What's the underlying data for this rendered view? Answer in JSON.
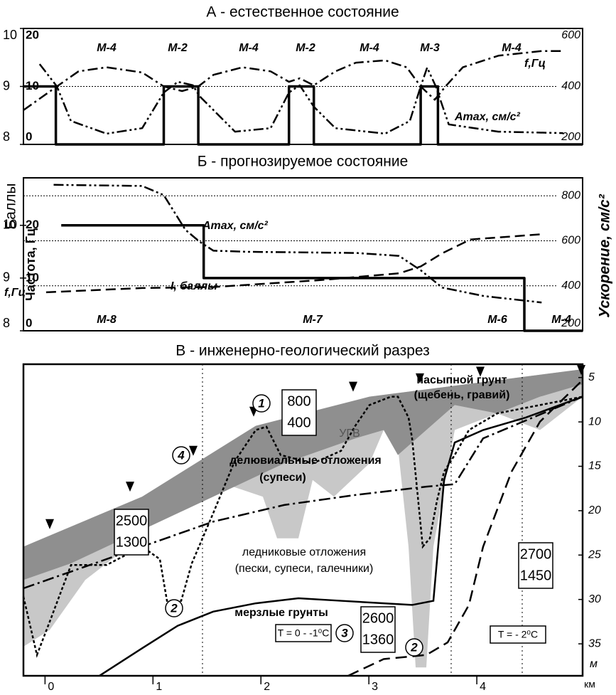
{
  "chart_data": [
    {
      "type": "line",
      "title": "А - естественное состояние",
      "xlim": [
        -0.2,
        4.98
      ],
      "ylim": [
        8,
        10
      ],
      "yticks": [
        8,
        9,
        10
      ],
      "flim": [
        0,
        20
      ],
      "fticks": [
        0,
        10,
        20
      ],
      "y2lim": [
        200,
        600
      ],
      "y2ticks": [
        200,
        400,
        600
      ],
      "grid": "y2",
      "zones": [
        "М-4",
        "М-2",
        "М-4",
        "М-2",
        "М-4",
        "М-3",
        "М-4"
      ],
      "series": [
        {
          "color": "#000000",
          "style": "solid",
          "axis": "y",
          "x": [
            -0.2,
            0.1,
            0.1,
            1.1,
            1.1,
            1.42,
            1.42,
            2.26,
            2.26,
            2.49,
            2.49,
            3.48,
            3.48,
            3.64,
            3.64,
            4.98
          ],
          "values": [
            9,
            9,
            8,
            8,
            9,
            9,
            8,
            8,
            9,
            9,
            8,
            8,
            9,
            9,
            8,
            8
          ]
        },
        {
          "name": "f,Гц",
          "color": "#000000",
          "style": "dash-dot",
          "axis": "f",
          "x": [
            -0.2,
            0.11,
            0.31,
            0.57,
            0.9,
            1.1,
            1.27,
            1.42,
            1.56,
            1.83,
            2.09,
            2.26,
            2.36,
            2.49,
            2.69,
            2.88,
            3.15,
            3.35,
            3.48,
            3.61,
            3.71,
            3.87,
            4.2,
            4.6,
            4.8
          ],
          "values": [
            5.9,
            10,
            12.6,
            13.3,
            12.4,
            10,
            9.2,
            10,
            12,
            13.3,
            12.6,
            10.8,
            11.4,
            10.2,
            12.6,
            14.1,
            14.5,
            13.3,
            10,
            7.7,
            10,
            13.3,
            15.3,
            16.1,
            16.1
          ]
        },
        {
          "name": "Amax, см/с²",
          "color": "#000000",
          "style": "dash-dot-dot",
          "axis": "y2",
          "x": [
            -0.05,
            0.11,
            0.24,
            0.57,
            0.9,
            1.1,
            1.23,
            1.37,
            1.43,
            1.76,
            2.09,
            2.26,
            2.36,
            2.49,
            2.69,
            3.15,
            3.38,
            3.48,
            3.54,
            3.62,
            3.74,
            4.2,
            4.8
          ],
          "values": [
            477,
            400,
            281,
            237,
            256,
            379,
            416,
            404,
            367,
            244,
            256,
            379,
            404,
            330,
            256,
            237,
            281,
            400,
            465,
            400,
            269,
            244,
            239
          ]
        }
      ]
    },
    {
      "type": "line",
      "title": "Б - прогнозируемое состояние",
      "ylabel": "Баллы",
      "flabel": "Частота, Гц",
      "y2label": "Ускорение, см/с²",
      "xlim": [
        -0.2,
        4.98
      ],
      "ylim": [
        8,
        10.9
      ],
      "yticks": [
        8,
        9,
        10
      ],
      "flim": [
        0,
        29
      ],
      "fticks": [
        0,
        10,
        20
      ],
      "y2lim": [
        200,
        880
      ],
      "y2ticks": [
        200,
        400,
        600,
        800
      ],
      "grid": "y2",
      "zones": [
        "М-8",
        "М-7",
        "М-6",
        "М-4"
      ],
      "series": [
        {
          "name": "I, баллы",
          "color": "#000000",
          "style": "solid",
          "axis": "y",
          "x": [
            0.15,
            1.47,
            1.47,
            4.44,
            4.44,
            4.98
          ],
          "values": [
            10,
            10,
            9,
            9,
            8,
            8
          ]
        },
        {
          "name": "f,Гц",
          "color": "#000000",
          "style": "dashed",
          "axis": "f",
          "x": [
            0.01,
            0.9,
            1.56,
            2.55,
            3.28,
            3.48,
            3.68,
            3.94,
            4.6
          ],
          "values": [
            7.3,
            8.1,
            8.3,
            9.6,
            10.9,
            12.2,
            14.7,
            17.3,
            18.3
          ]
        },
        {
          "name": "Amax, см/с²",
          "color": "#000000",
          "style": "dash-dot-dot",
          "axis": "y2",
          "x": [
            0.08,
            0.9,
            1.1,
            1.3,
            1.43,
            1.56,
            1.89,
            2.88,
            3.28,
            3.48,
            3.68,
            4.07,
            4.6
          ],
          "values": [
            849,
            844,
            803,
            649,
            597,
            556,
            551,
            546,
            533,
            469,
            392,
            354,
            326
          ]
        }
      ]
    },
    {
      "type": "section",
      "title": "В - инженерно-геологический разрез",
      "xlim": [
        -0.2,
        4.98
      ],
      "xticks": [
        0,
        1,
        2,
        3,
        4
      ],
      "xunit": "км",
      "ylim": [
        3.5,
        38.6
      ],
      "yticks": [
        5,
        10,
        15,
        20,
        25,
        30,
        35
      ],
      "yunit": "м",
      "labels": {
        "fill": [
          "насыпной грунт",
          "(щебень, гравий)"
        ],
        "water": "УГВ",
        "deluvial": [
          "делювиальные отложения",
          "(супеси)"
        ],
        "glacial": [
          "ледниковые отложения",
          "(пески, супеси, галечники)"
        ],
        "frozen": "мерзлые грунты",
        "temp1": "T = 0 - -1⁰C",
        "temp2": "T = - 2⁰C"
      },
      "boxes": [
        [
          800,
          400
        ],
        [
          2500,
          1300
        ],
        [
          2600,
          1360
        ],
        [
          2700,
          1450
        ]
      ],
      "markers": [
        1,
        4,
        2,
        2,
        3
      ]
    }
  ]
}
